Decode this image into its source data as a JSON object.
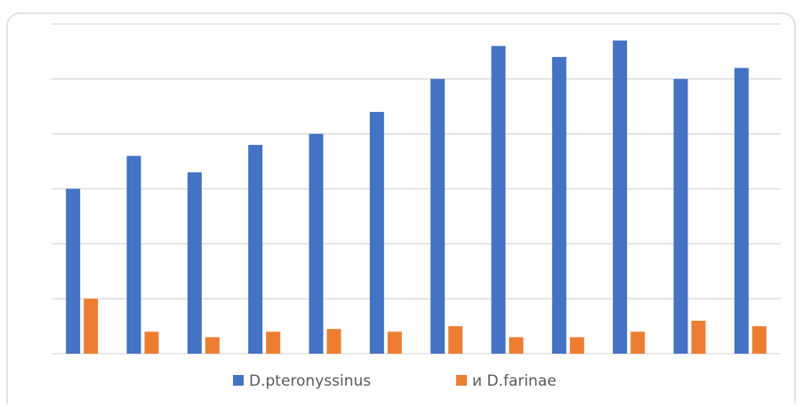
{
  "chart_data": {
    "type": "bar",
    "categories": [
      null,
      null,
      null,
      null,
      null,
      null,
      null,
      null,
      null,
      null,
      null,
      null
    ],
    "series": [
      {
        "name": "D.pteronyssinus",
        "color": "#4472c4",
        "values": [
          3.0,
          3.6,
          3.3,
          3.8,
          4.0,
          4.4,
          5.0,
          5.6,
          5.4,
          5.7,
          5.0,
          5.2
        ]
      },
      {
        "name": "и D.farinae",
        "color": "#ed7d31",
        "values": [
          1.0,
          0.4,
          0.3,
          0.4,
          0.45,
          0.4,
          0.5,
          0.3,
          0.3,
          0.4,
          0.6,
          0.5
        ]
      }
    ],
    "ylim": [
      0,
      6
    ],
    "yticks": [
      0,
      1,
      2,
      3,
      4,
      5,
      6
    ],
    "grid": true,
    "legend": "bottom"
  }
}
